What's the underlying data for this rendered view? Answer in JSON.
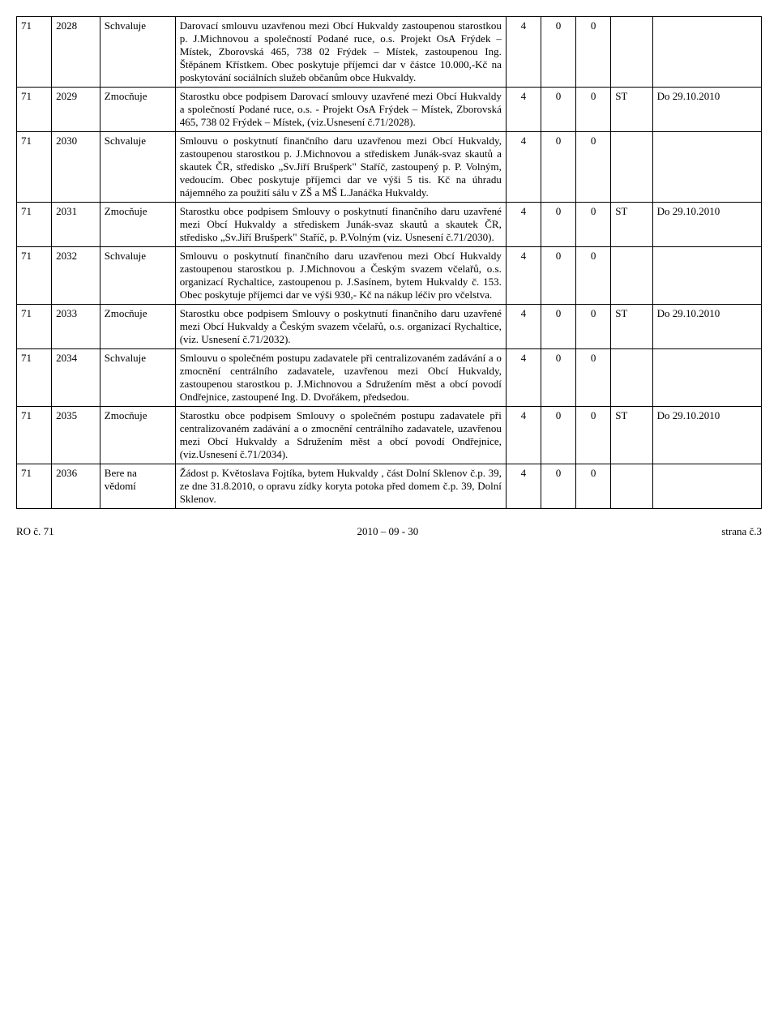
{
  "rows": [
    {
      "a": "71",
      "b": "2028",
      "c": "Schvaluje",
      "d": "Darovací smlouvu uzavřenou mezi Obcí Hukvaldy zastoupenou starostkou p. J.Michnovou a společností Podané ruce, o.s. Projekt OsA Frýdek – Místek, Zborovská 465, 738 02 Frýdek – Místek, zastoupenou Ing. Štěpánem Křístkem. Obec poskytuje příjemci dar v částce 10.000,-Kč na poskytování sociálních služeb občanům obce Hukvaldy.",
      "e": "4",
      "f": "0",
      "g": "0",
      "h": "",
      "i": ""
    },
    {
      "a": "71",
      "b": "2029",
      "c": "Zmocňuje",
      "d": "Starostku obce podpisem Darovací smlouvy uzavřené mezi Obcí Hukvaldy a společností Podané ruce, o.s. - Projekt OsA Frýdek – Místek, Zborovská 465, 738 02 Frýdek – Místek, (viz.Usnesení č.71/2028).",
      "e": "4",
      "f": "0",
      "g": "0",
      "h": "ST",
      "i": "Do 29.10.2010"
    },
    {
      "a": "71",
      "b": "2030",
      "c": "Schvaluje",
      "d": "Smlouvu o poskytnutí finančního daru uzavřenou mezi Obcí Hukvaldy, zastoupenou starostkou p. J.Michnovou a střediskem Junák-svaz skautů a skautek ČR, středisko „Sv.Jiří Brušperk\" Staříč, zastoupený p. P. Volným, vedoucím. Obec poskytuje příjemci dar ve výši 5 tis. Kč na úhradu nájemného za použití sálu v ZŠ a MŠ L.Janáčka Hukvaldy.",
      "e": "4",
      "f": "0",
      "g": "0",
      "h": "",
      "i": ""
    },
    {
      "a": "71",
      "b": "2031",
      "c": "Zmocňuje",
      "d": "Starostku obce podpisem Smlouvy o poskytnutí finančního daru uzavřené mezi Obcí Hukvaldy a střediskem Junák-svaz skautů a skautek ČR, středisko „Sv.Jiří Brušperk\" Staříč, p. P.Volným (viz. Usnesení č.71/2030).",
      "e": "4",
      "f": "0",
      "g": "0",
      "h": "ST",
      "i": "Do 29.10.2010"
    },
    {
      "a": "71",
      "b": "2032",
      "c": "Schvaluje",
      "d": "Smlouvu o poskytnutí finančního daru uzavřenou mezi Obcí Hukvaldy zastoupenou starostkou p. J.Michnovou a Českým svazem včelařů, o.s. organizací Rychaltice, zastoupenou p. J.Sasínem, bytem Hukvaldy č. 153. Obec poskytuje příjemci dar ve výši 930,- Kč na nákup léčiv pro včelstva.",
      "e": "4",
      "f": "0",
      "g": "0",
      "h": "",
      "i": ""
    },
    {
      "a": "71",
      "b": "2033",
      "c": "Zmocňuje",
      "d": "Starostku obce podpisem Smlouvy o poskytnutí finančního daru uzavřené mezi Obcí Hukvaldy a Českým svazem včelařů, o.s. organizací Rychaltice, (viz. Usnesení č.71/2032).",
      "e": "4",
      "f": "0",
      "g": "0",
      "h": "ST",
      "i": "Do 29.10.2010"
    },
    {
      "a": "71",
      "b": "2034",
      "c": "Schvaluje",
      "d": "Smlouvu o společném postupu zadavatele při centralizovaném zadávání a o zmocnění centrálního zadavatele, uzavřenou mezi Obcí Hukvaldy, zastoupenou starostkou p. J.Michnovou a Sdružením měst a obcí povodí Ondřejnice, zastoupené Ing. D. Dvořákem, předsedou.",
      "e": "4",
      "f": "0",
      "g": "0",
      "h": "",
      "i": ""
    },
    {
      "a": "71",
      "b": "2035",
      "c": "Zmocňuje",
      "d": "Starostku obce podpisem Smlouvy o společném postupu zadavatele při centralizovaném zadávání a o zmocnění centrálního zadavatele, uzavřenou mezi Obcí Hukvaldy a Sdružením měst a obcí povodí Ondřejnice, (viz.Usnesení č.71/2034).",
      "e": "4",
      "f": "0",
      "g": "0",
      "h": "ST",
      "i": "Do 29.10.2010"
    },
    {
      "a": "71",
      "b": "2036",
      "c": "Bere na vědomí",
      "d": "Žádost p. Květoslava Fojtíka, bytem Hukvaldy , část Dolní Sklenov č.p. 39, ze dne 31.8.2010, o opravu zídky koryta potoka před domem č.p. 39, Dolní Sklenov.",
      "e": "4",
      "f": "0",
      "g": "0",
      "h": "",
      "i": ""
    }
  ],
  "footer": {
    "left": "RO č. 71",
    "center": "2010 – 09 - 30",
    "right": "strana č.3"
  },
  "styling": {
    "font_family": "Times New Roman",
    "font_size_pt": 13,
    "border_color": "#000000",
    "background_color": "#ffffff",
    "text_color": "#000000",
    "col_widths_pct": [
      4,
      6,
      10,
      48,
      4,
      4,
      4,
      5,
      15
    ]
  }
}
